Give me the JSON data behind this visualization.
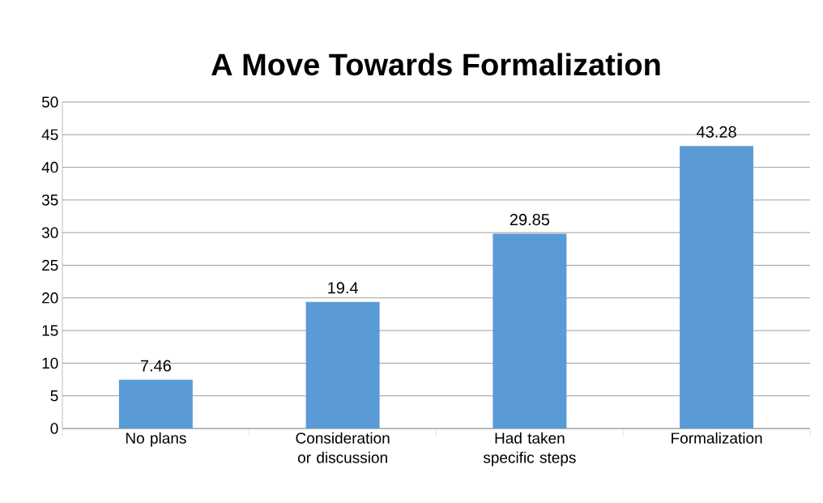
{
  "chart_data": {
    "type": "bar",
    "title": "A Move Towards Formalization",
    "categories": [
      "No plans",
      "Consideration or discussion",
      "Had taken specific steps",
      "Formalization"
    ],
    "values": [
      7.46,
      19.4,
      29.85,
      43.28
    ],
    "color": "#5b9bd5",
    "ylim": [
      0,
      50
    ],
    "yticks": [
      0,
      5,
      10,
      15,
      20,
      25,
      30,
      35,
      40,
      45,
      50
    ],
    "grid": "y",
    "data_labels": true
  }
}
